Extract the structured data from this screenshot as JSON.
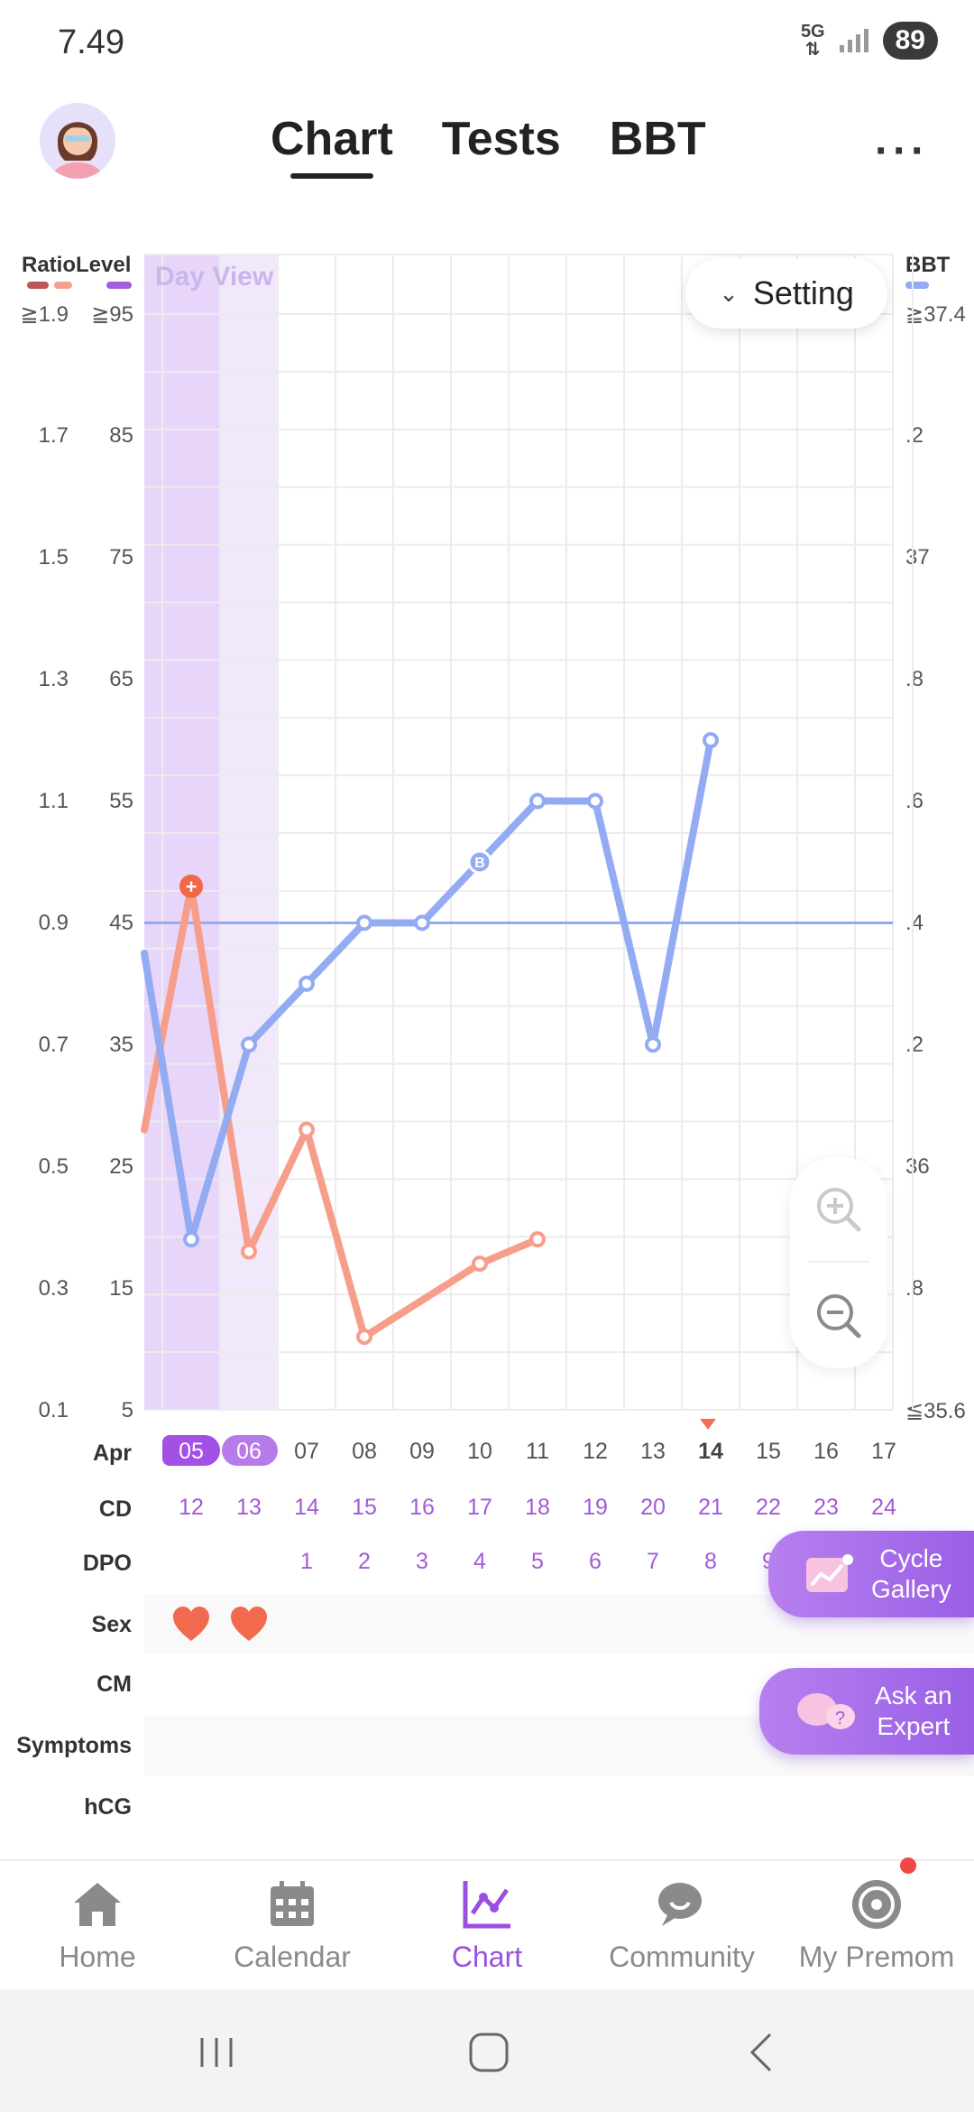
{
  "status": {
    "time": "7.49",
    "network": "5G",
    "battery": "89"
  },
  "header": {
    "tabs": [
      "Chart",
      "Tests",
      "BBT"
    ],
    "active_tab": "Chart",
    "more": "···"
  },
  "chart": {
    "left_axis_ratio_title": "Ratio",
    "left_axis_level_title": "Level",
    "right_axis_title": "BBT",
    "ratio_ticks": [
      "≧1.9",
      "1.7",
      "1.5",
      "1.3",
      "1.1",
      "0.9",
      "0.7",
      "0.5",
      "0.3",
      "0.1"
    ],
    "level_ticks": [
      "≧95",
      "85",
      "75",
      "65",
      "55",
      "45",
      "35",
      "25",
      "15",
      "5"
    ],
    "bbt_ticks": [
      "≧37.4",
      ".2",
      "37",
      ".8",
      ".6",
      ".4",
      ".2",
      "36",
      ".8",
      "≦35.6"
    ],
    "day_view_label": "Day View",
    "setting_label": "Setting",
    "colors": {
      "ratio": "#c0545a",
      "level": "#f5a08c",
      "lh_line": "#f79e8b",
      "bbt_line": "#93abf2",
      "bbt_marker": "#9b4fe0"
    }
  },
  "chart_data": {
    "type": "line",
    "x": [
      "05",
      "06",
      "07",
      "08",
      "09",
      "10",
      "11",
      "12",
      "13",
      "14",
      "15",
      "16",
      "17"
    ],
    "series": [
      {
        "name": "BBT",
        "values": [
          35.88,
          36.2,
          36.3,
          36.4,
          36.4,
          36.5,
          36.6,
          36.6,
          36.2,
          36.7,
          null,
          null,
          null
        ]
      },
      {
        "name": "Level",
        "values": [
          48,
          18,
          28,
          11,
          null,
          17,
          19,
          null,
          null,
          null,
          null,
          null,
          null
        ]
      }
    ],
    "coverline": 36.4,
    "bbt_range": [
      35.6,
      37.4
    ],
    "level_range": [
      5,
      95
    ],
    "ratio_range": [
      0.1,
      1.9
    ],
    "lead_in_bbt": 36.35,
    "lead_in_level": 28
  },
  "dates": {
    "month": "Apr",
    "days": [
      "05",
      "06",
      "07",
      "08",
      "09",
      "10",
      "11",
      "12",
      "13",
      "14",
      "15",
      "16",
      "17"
    ],
    "highlighted": [
      "05",
      "06"
    ],
    "today": "14",
    "cd": [
      "12",
      "13",
      "14",
      "15",
      "16",
      "17",
      "18",
      "19",
      "20",
      "21",
      "22",
      "23",
      "24"
    ],
    "dpo": [
      "",
      "",
      "1",
      "2",
      "3",
      "4",
      "5",
      "6",
      "7",
      "8",
      "9",
      "",
      ""
    ]
  },
  "rows": {
    "cd": "CD",
    "dpo": "DPO",
    "sex": "Sex",
    "cm": "CM",
    "symptoms": "Symptoms",
    "hcg": "hCG"
  },
  "floating": {
    "cycle_gallery": "Cycle\nGallery",
    "ask_expert": "Ask an\nExpert"
  },
  "nav": [
    {
      "label": "Home",
      "icon": "home-icon"
    },
    {
      "label": "Calendar",
      "icon": "calendar-icon"
    },
    {
      "label": "Chart",
      "icon": "chart-icon"
    },
    {
      "label": "Community",
      "icon": "community-icon"
    },
    {
      "label": "My Premom",
      "icon": "my-premom-icon"
    }
  ],
  "active_nav": "Chart"
}
